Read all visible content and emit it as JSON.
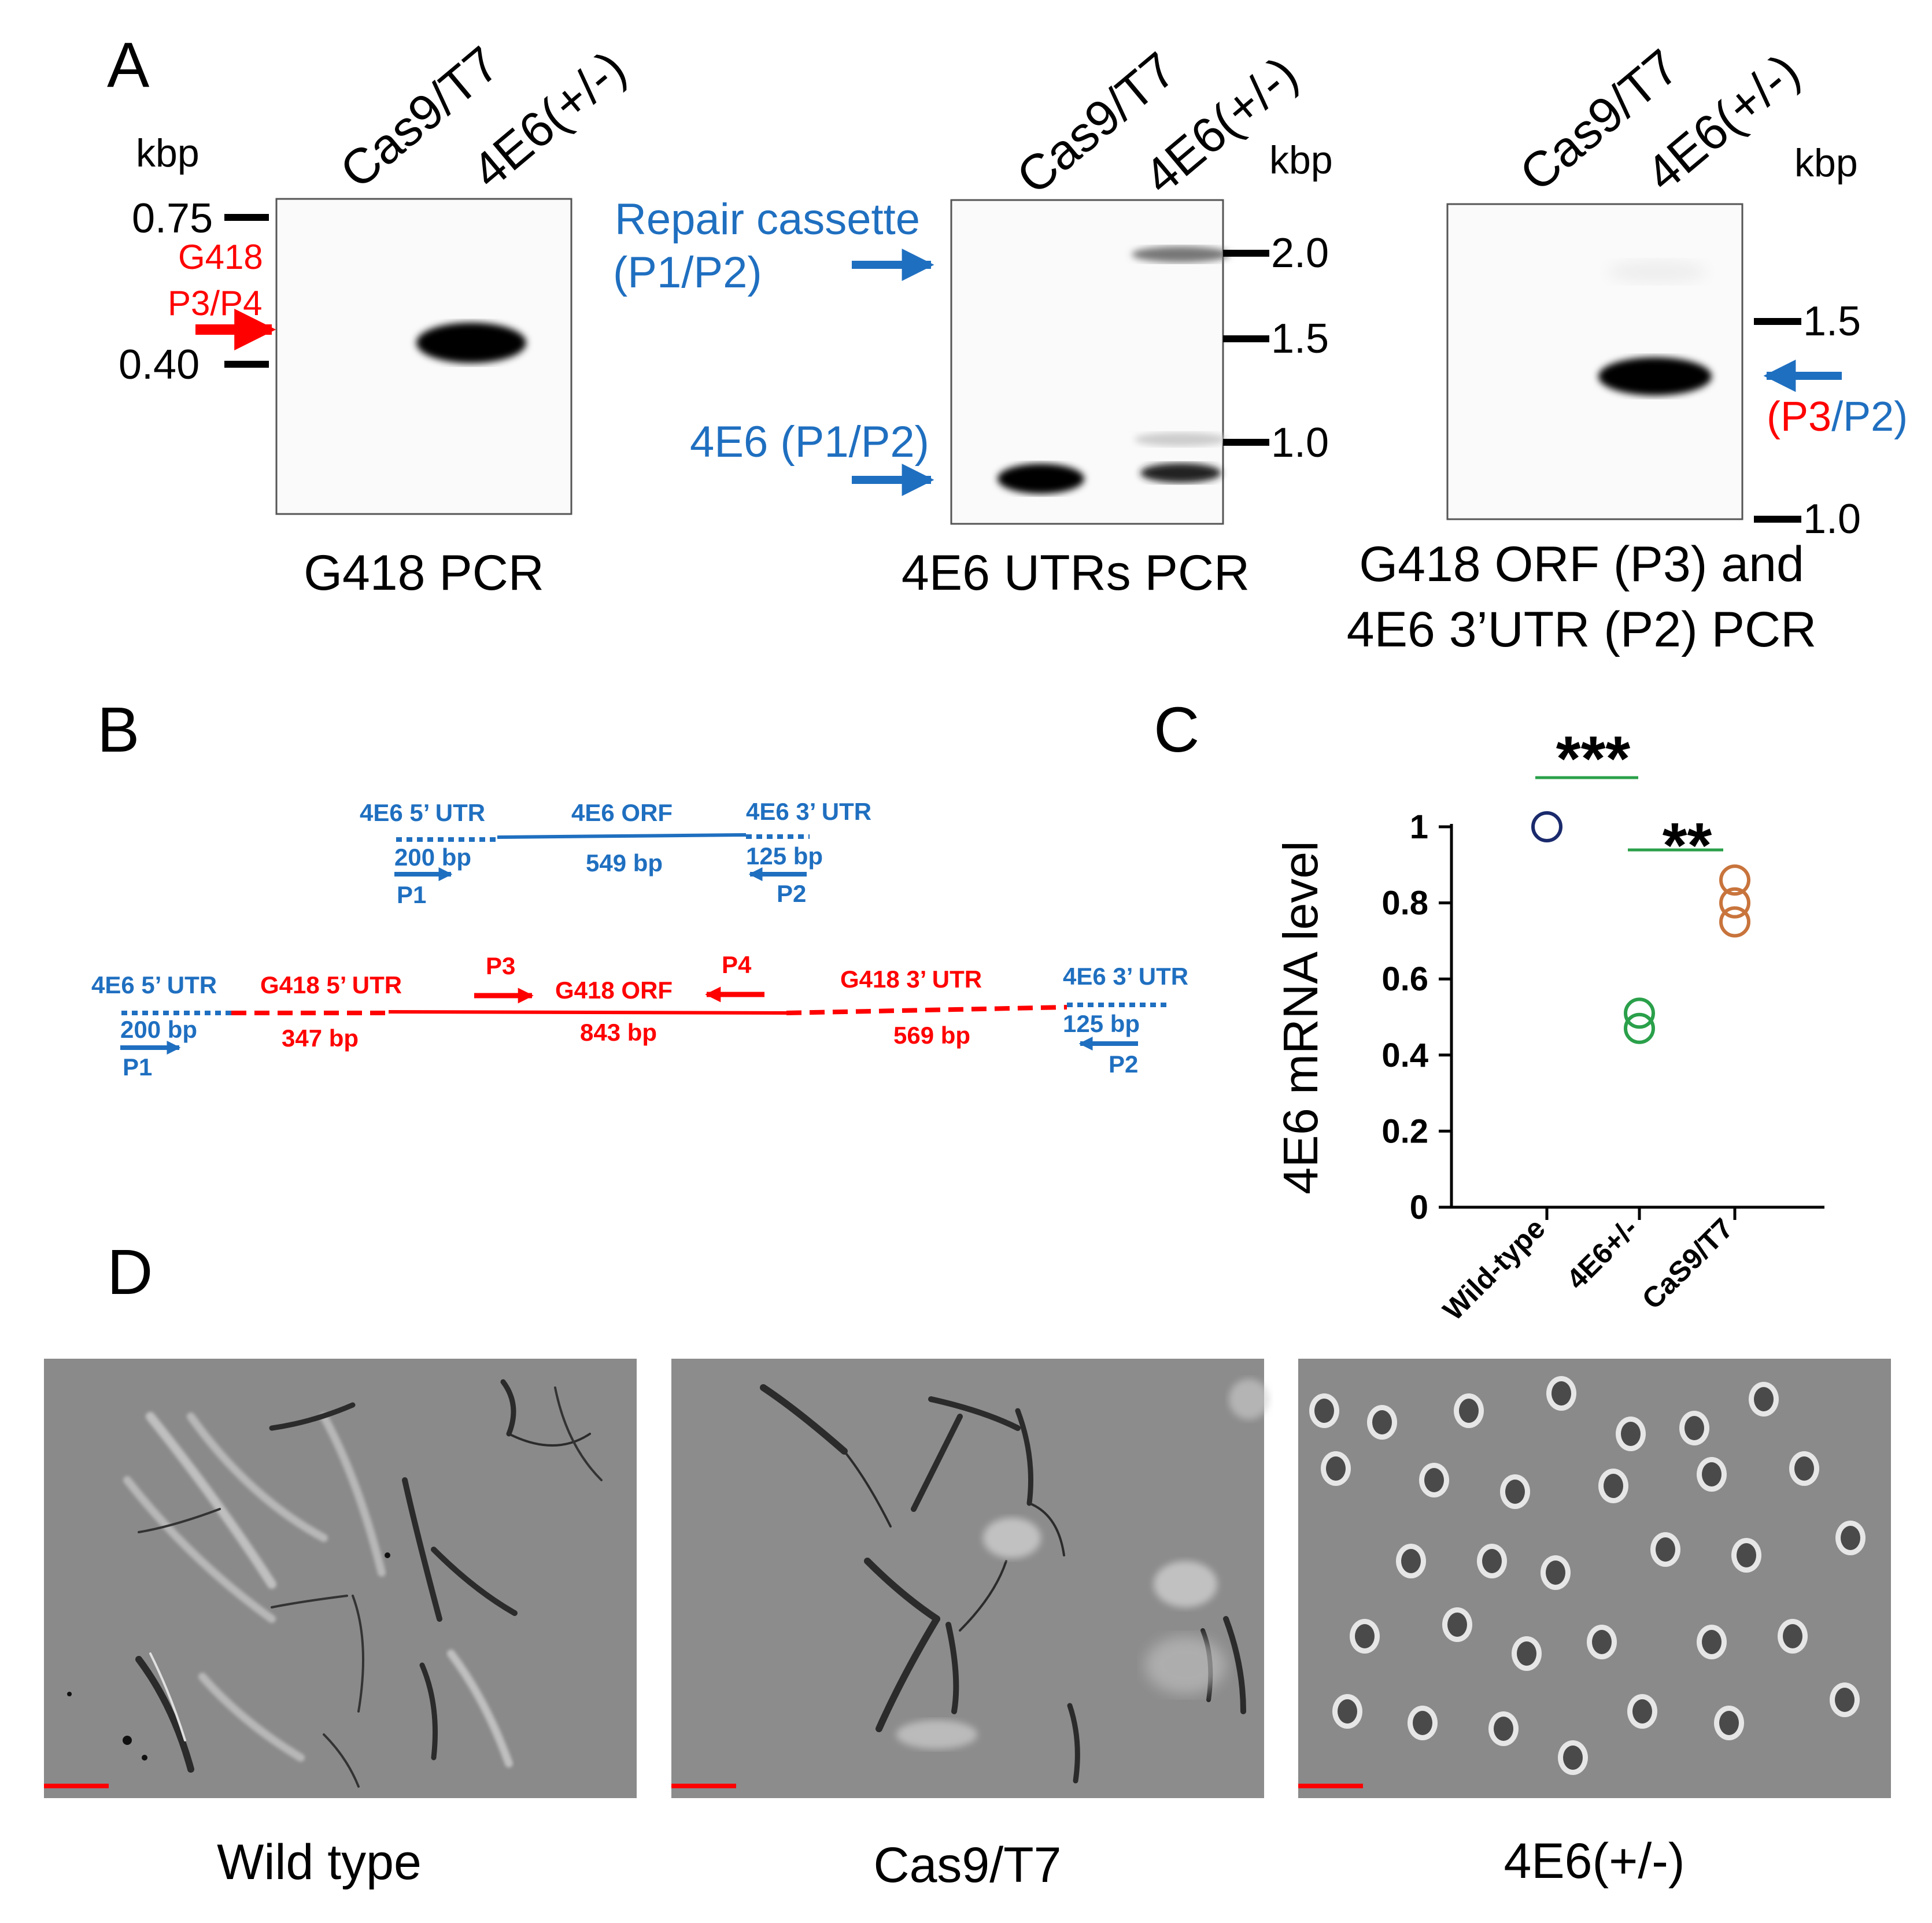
{
  "panel_labels": {
    "A": "A",
    "B": "B",
    "C": "C",
    "D": "D"
  },
  "colors": {
    "blue": "#1f6fc0",
    "red": "#ff0000",
    "green": "#2aa04a",
    "navy": "#1a2a6c",
    "orange": "#c8743c",
    "sig_line": "#2aa04a"
  },
  "gels": {
    "gel1": {
      "title": "G418 PCR",
      "lanes": [
        "Cas9/T7",
        "4E6(+/-)"
      ],
      "unit": "kbp",
      "markers": [
        "0.75",
        "0.40"
      ],
      "arrow_label_top": "G418",
      "arrow_label_bottom": "P3/P4"
    },
    "gel2": {
      "title": "4E6 UTRs PCR",
      "lanes": [
        "Cas9/T7",
        "4E6(+/-)"
      ],
      "unit": "kbp",
      "markers": [
        "2.0",
        "1.5",
        "1.0"
      ],
      "upper_label_line1": "Repair cassette",
      "upper_label_line2": "(P1/P2)",
      "lower_label": "4E6 (P1/P2)"
    },
    "gel3": {
      "title_line1": "G418 ORF (P3) and",
      "title_line2": "4E6 3’UTR (P2) PCR",
      "lanes": [
        "Cas9/T7",
        "4E6(+/-)"
      ],
      "unit": "kbp",
      "markers": [
        "1.5",
        "1.0"
      ],
      "label_open": "(",
      "label_p3": "P3",
      "label_rest": "/P2)"
    }
  },
  "diagram": {
    "wt": {
      "utr5": "4E6 5’ UTR",
      "utr5_len": "200 bp",
      "orf": "4E6 ORF",
      "orf_len": "549 bp",
      "utr3": "4E6 3’ UTR",
      "utr3_len": "125 bp",
      "p1": "P1",
      "p2": "P2"
    },
    "cassette": {
      "utr5": "4E6 5’ UTR",
      "utr5_len": "200 bp",
      "g418_utr5": "G418 5’ UTR",
      "g418_utr5_len": "347 bp",
      "p3": "P3",
      "g418_orf": "G418 ORF",
      "g418_orf_len": "843 bp",
      "p4": "P4",
      "g418_utr3": "G418 3’ UTR",
      "g418_utr3_len": "569 bp",
      "utr3": "4E6 3’ UTR",
      "utr3_len": "125 bp",
      "p1": "P1",
      "p2": "P2"
    }
  },
  "chart_data": {
    "type": "scatter",
    "ylabel": "4E6 mRNA level",
    "xlabel": "",
    "categories": [
      "Wild-type",
      "4E6+/-",
      "CaS9/T7"
    ],
    "ylim": [
      0,
      1
    ],
    "yticks": [
      "0",
      "0.2",
      "0.4",
      "0.6",
      "0.8",
      "1"
    ],
    "ytick_values": [
      0,
      0.2,
      0.4,
      0.6,
      0.8,
      1
    ],
    "series": [
      {
        "category": "Wild-type",
        "values": [
          1.0
        ],
        "color": "#1a2a6c"
      },
      {
        "category": "4E6+/-",
        "values": [
          0.51,
          0.47
        ],
        "color": "#2aa04a"
      },
      {
        "category": "CaS9/T7",
        "values": [
          0.86,
          0.8,
          0.75
        ],
        "color": "#c8743c"
      }
    ],
    "significance": [
      {
        "label": "***",
        "between": [
          "Wild-type",
          "4E6+/-"
        ]
      },
      {
        "label": "**",
        "between": [
          "4E6+/-",
          "CaS9/T7"
        ]
      }
    ],
    "grid": false
  },
  "micrographs": {
    "captions": [
      "Wild type",
      "Cas9/T7",
      "4E6(+/-)"
    ]
  }
}
